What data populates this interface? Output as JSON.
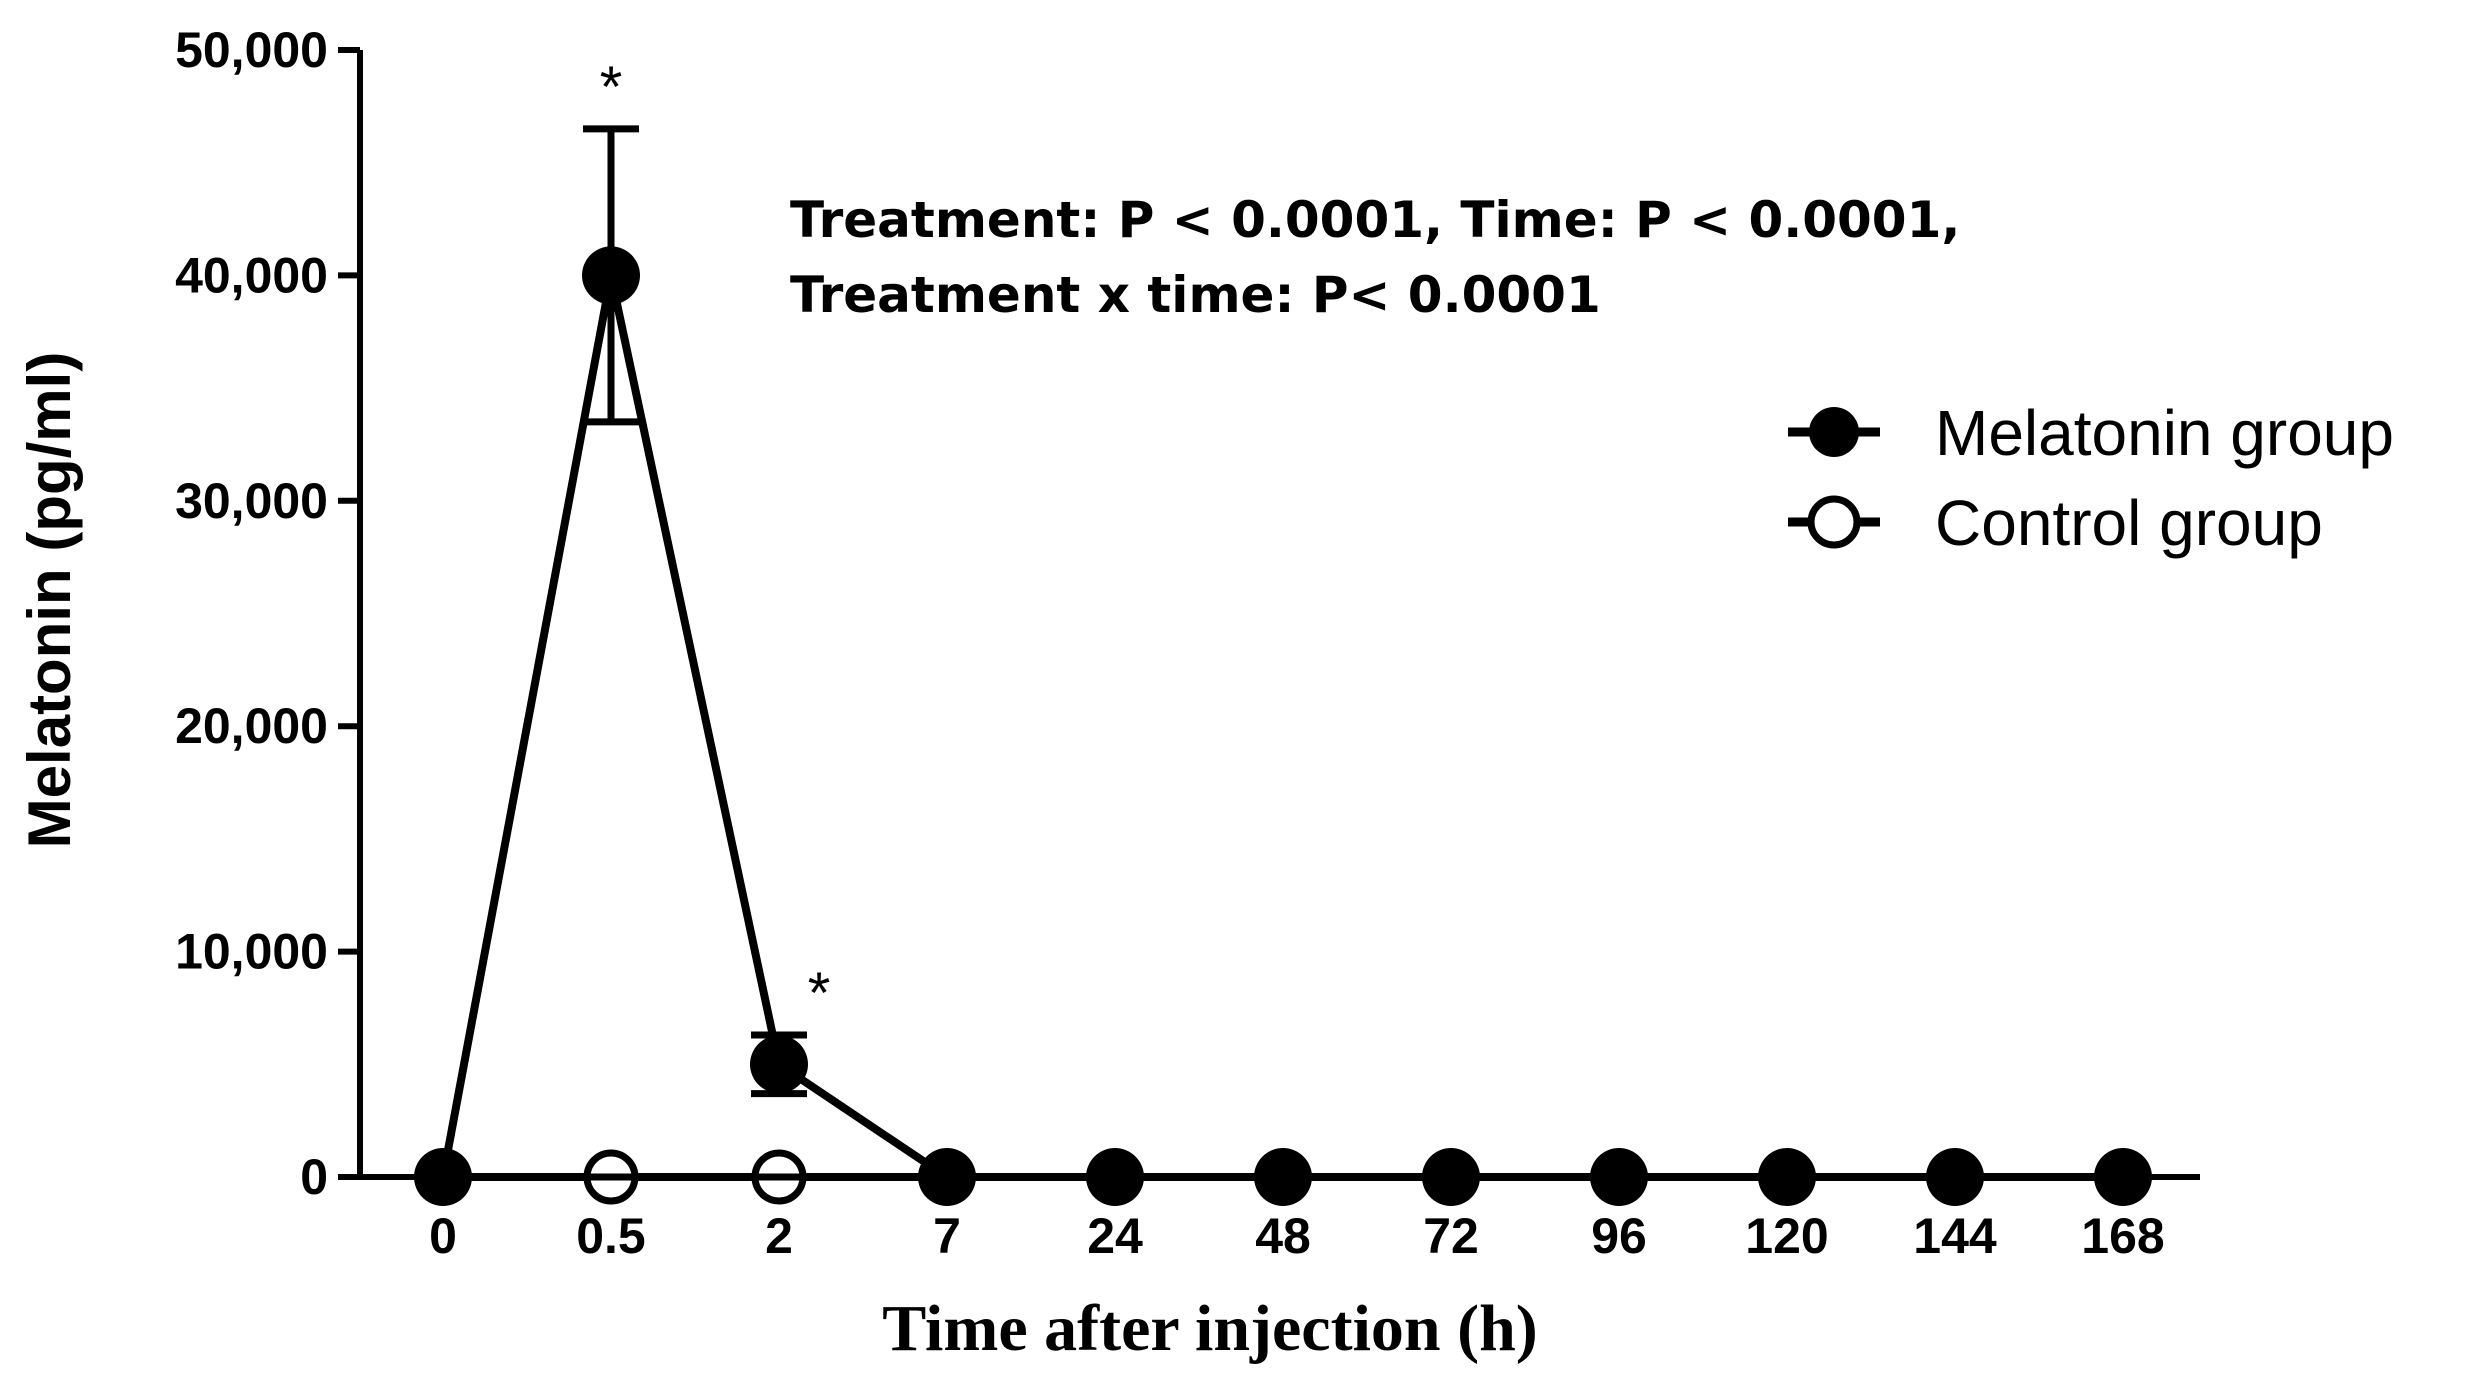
{
  "chart_data": {
    "type": "line",
    "title": "",
    "xlabel": "Time after injection (h)",
    "ylabel": "Melatonin (pg/ml)",
    "categories": [
      "0",
      "0.5",
      "2",
      "7",
      "24",
      "48",
      "72",
      "96",
      "120",
      "144",
      "168"
    ],
    "ylim": [
      0,
      50000
    ],
    "yticks": [
      0,
      10000,
      20000,
      30000,
      40000,
      50000
    ],
    "ytick_labels": [
      "0",
      "10,000",
      "20,000",
      "30,000",
      "40,000",
      "50,000"
    ],
    "grid": false,
    "legend_position": "right",
    "series": [
      {
        "name": "Melatonin group",
        "marker": "filled-circle",
        "values": [
          0,
          40000,
          5000,
          0,
          0,
          0,
          0,
          0,
          0,
          0,
          0
        ],
        "error": [
          0,
          6500,
          1300,
          0,
          0,
          0,
          0,
          0,
          0,
          0,
          0
        ]
      },
      {
        "name": "Control group",
        "marker": "open-circle",
        "values": [
          0,
          0,
          0,
          0,
          0,
          0,
          0,
          0,
          0,
          0,
          0
        ],
        "error": [
          0,
          0,
          0,
          0,
          0,
          0,
          0,
          0,
          0,
          0,
          0
        ]
      }
    ],
    "significance": [
      {
        "category": "0.5",
        "label": "*"
      },
      {
        "category": "2",
        "label": "*"
      }
    ],
    "annotation_lines": [
      "Treatment: P < 0.0001, Time: P < 0.0001,",
      "Treatment x time: P< 0.0001"
    ]
  }
}
